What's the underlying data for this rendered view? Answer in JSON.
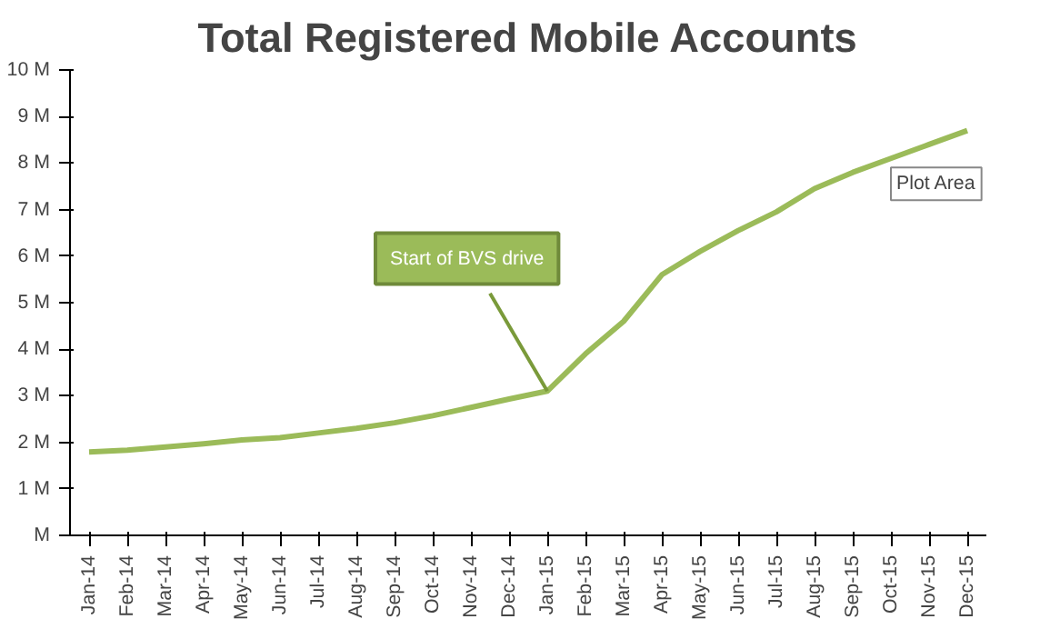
{
  "chart_data": {
    "type": "line",
    "title": "Total Registered Mobile Accounts",
    "categories": [
      "Jan-14",
      "Feb-14",
      "Mar-14",
      "Apr-14",
      "May-14",
      "Jun-14",
      "Jul-14",
      "Aug-14",
      "Sep-14",
      "Oct-14",
      "Nov-14",
      "Dec-14",
      "Jan-15",
      "Feb-15",
      "Mar-15",
      "Apr-15",
      "May-15",
      "Jun-15",
      "Jul-15",
      "Aug-15",
      "Sep-15",
      "Oct-15",
      "Nov-15",
      "Dec-15"
    ],
    "series": [
      {
        "color": "#9bbb59",
        "values": [
          1.79,
          1.83,
          1.9,
          1.97,
          2.05,
          2.1,
          2.2,
          2.3,
          2.42,
          2.57,
          2.75,
          2.93,
          3.1,
          3.9,
          4.6,
          5.6,
          6.1,
          6.55,
          6.95,
          7.45,
          7.8,
          8.1,
          8.4,
          8.7
        ]
      }
    ],
    "ylim": [
      0,
      10
    ],
    "yticks": [
      {
        "value": 0,
        "label": "M"
      },
      {
        "value": 1,
        "label": "1 M"
      },
      {
        "value": 2,
        "label": "2 M"
      },
      {
        "value": 3,
        "label": "3 M"
      },
      {
        "value": 4,
        "label": "4 M"
      },
      {
        "value": 5,
        "label": "5 M"
      },
      {
        "value": 6,
        "label": "6 M"
      },
      {
        "value": 7,
        "label": "7 M"
      },
      {
        "value": 8,
        "label": "8 M"
      },
      {
        "value": 9,
        "label": "9 M"
      },
      {
        "value": 10,
        "label": "10 M"
      }
    ],
    "grid": false,
    "marker": "none",
    "line_style": "solid",
    "annotations": [
      {
        "text": "Start of BVS drive",
        "x": "Jan-15",
        "y": 3.1
      },
      "Plot Area"
    ]
  }
}
